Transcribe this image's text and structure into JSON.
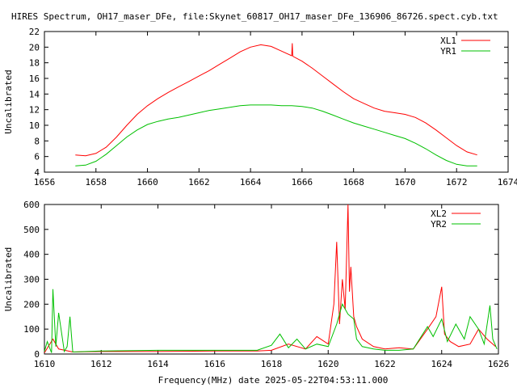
{
  "title": "HIRES Spectrum, OH17_maser_DFe, file:Skynet_60817_OH17_maser_DFe_136906_86726.spect.cyb.txt",
  "xlabel": "Frequency(MHz) date 2025-05-22T04:53:11.000",
  "chart_data": [
    {
      "type": "line",
      "ylabel": "Uncalibrated",
      "xlim": [
        1656,
        1674
      ],
      "ylim": [
        4,
        22
      ],
      "xticks": [
        1656,
        1658,
        1660,
        1662,
        1664,
        1666,
        1668,
        1670,
        1672,
        1674
      ],
      "yticks": [
        4,
        6,
        8,
        10,
        12,
        14,
        16,
        18,
        20,
        22
      ],
      "grid": false,
      "legend_position": "top-right",
      "series": [
        {
          "name": "XL1",
          "color": "#ff0000",
          "x": [
            1657.2,
            1657.6,
            1658.0,
            1658.4,
            1658.8,
            1659.2,
            1659.6,
            1660.0,
            1660.4,
            1660.8,
            1661.2,
            1661.6,
            1662.0,
            1662.4,
            1662.8,
            1663.2,
            1663.6,
            1664.0,
            1664.4,
            1664.8,
            1665.2,
            1665.6,
            1665.62,
            1665.64,
            1665.66,
            1666.0,
            1666.4,
            1666.8,
            1667.2,
            1667.6,
            1668.0,
            1668.4,
            1668.8,
            1669.2,
            1669.6,
            1670.0,
            1670.4,
            1670.8,
            1671.2,
            1671.6,
            1672.0,
            1672.4,
            1672.8
          ],
          "y": [
            6.2,
            6.1,
            6.4,
            7.2,
            8.5,
            10.0,
            11.4,
            12.5,
            13.4,
            14.2,
            14.9,
            15.6,
            16.3,
            17.0,
            17.8,
            18.6,
            19.4,
            20.0,
            20.3,
            20.1,
            19.5,
            18.9,
            20.5,
            18.9,
            18.8,
            18.2,
            17.3,
            16.3,
            15.3,
            14.3,
            13.4,
            12.8,
            12.2,
            11.8,
            11.6,
            11.4,
            11.0,
            10.3,
            9.4,
            8.4,
            7.4,
            6.6,
            6.2
          ]
        },
        {
          "name": "YR1",
          "color": "#00c000",
          "x": [
            1657.2,
            1657.6,
            1658.0,
            1658.4,
            1658.8,
            1659.2,
            1659.6,
            1660.0,
            1660.4,
            1660.8,
            1661.2,
            1661.6,
            1662.0,
            1662.4,
            1662.8,
            1663.2,
            1663.6,
            1664.0,
            1664.4,
            1664.8,
            1665.2,
            1665.6,
            1666.0,
            1666.4,
            1666.8,
            1667.2,
            1667.6,
            1668.0,
            1668.4,
            1668.8,
            1669.2,
            1669.6,
            1670.0,
            1670.4,
            1670.8,
            1671.2,
            1671.6,
            1672.0,
            1672.4,
            1672.8
          ],
          "y": [
            4.8,
            4.9,
            5.4,
            6.3,
            7.4,
            8.5,
            9.4,
            10.1,
            10.5,
            10.8,
            11.0,
            11.3,
            11.6,
            11.9,
            12.1,
            12.3,
            12.5,
            12.6,
            12.6,
            12.6,
            12.5,
            12.5,
            12.4,
            12.2,
            11.8,
            11.3,
            10.8,
            10.3,
            9.9,
            9.5,
            9.1,
            8.7,
            8.3,
            7.7,
            7.0,
            6.2,
            5.5,
            5.0,
            4.8,
            4.8
          ]
        }
      ]
    },
    {
      "type": "line",
      "ylabel": "Uncalibrated",
      "xlim": [
        1610,
        1626
      ],
      "ylim": [
        0,
        600
      ],
      "xticks": [
        1610,
        1612,
        1614,
        1616,
        1618,
        1620,
        1622,
        1624,
        1626
      ],
      "yticks": [
        0,
        100,
        200,
        300,
        400,
        500,
        600
      ],
      "grid": false,
      "legend_position": "top-right",
      "series": [
        {
          "name": "XL2",
          "color": "#ff0000",
          "x": [
            1610.0,
            1610.3,
            1610.5,
            1611.0,
            1612.0,
            1614.0,
            1616.0,
            1617.5,
            1618.0,
            1618.6,
            1619.2,
            1619.6,
            1620.0,
            1620.2,
            1620.3,
            1620.4,
            1620.5,
            1620.6,
            1620.7,
            1620.75,
            1620.8,
            1620.9,
            1621.0,
            1621.2,
            1621.6,
            1622.0,
            1622.5,
            1623.0,
            1623.5,
            1623.8,
            1624.0,
            1624.1,
            1624.3,
            1624.6,
            1625.0,
            1625.3,
            1625.6,
            1625.9
          ],
          "y": [
            5,
            60,
            20,
            8,
            10,
            10,
            12,
            12,
            15,
            40,
            20,
            70,
            40,
            200,
            450,
            120,
            300,
            180,
            600,
            250,
            350,
            150,
            110,
            60,
            30,
            20,
            25,
            20,
            100,
            150,
            270,
            80,
            50,
            30,
            40,
            100,
            60,
            30
          ]
        },
        {
          "name": "YR2",
          "color": "#00c000",
          "x": [
            1610.0,
            1610.1,
            1610.25,
            1610.3,
            1610.4,
            1610.5,
            1610.7,
            1610.8,
            1610.9,
            1611.0,
            1612.0,
            1614.0,
            1616.0,
            1617.5,
            1618.0,
            1618.3,
            1618.6,
            1618.9,
            1619.2,
            1619.6,
            1620.0,
            1620.3,
            1620.5,
            1620.7,
            1620.9,
            1621.0,
            1621.2,
            1621.6,
            1622.0,
            1622.5,
            1623.0,
            1623.5,
            1623.7,
            1624.0,
            1624.2,
            1624.5,
            1624.8,
            1625.0,
            1625.3,
            1625.5,
            1625.7,
            1625.8,
            1625.95
          ],
          "y": [
            10,
            50,
            5,
            260,
            30,
            165,
            10,
            30,
            150,
            8,
            12,
            15,
            15,
            15,
            35,
            80,
            25,
            60,
            20,
            40,
            30,
            120,
            200,
            160,
            140,
            60,
            30,
            20,
            15,
            15,
            20,
            110,
            70,
            140,
            50,
            120,
            60,
            150,
            100,
            40,
            195,
            60,
            20
          ]
        }
      ]
    }
  ]
}
